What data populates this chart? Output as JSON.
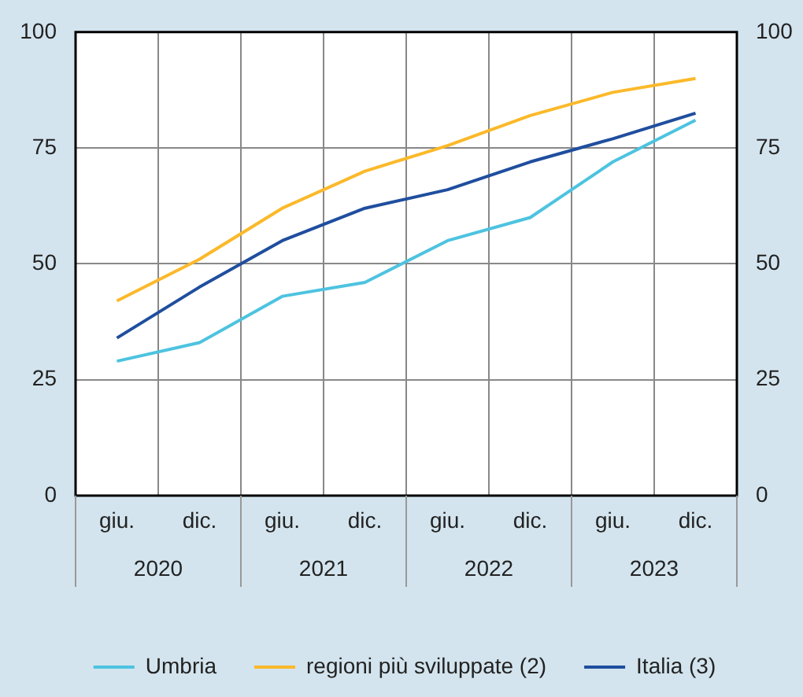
{
  "chart_data": {
    "type": "line",
    "categories": [
      "giu.",
      "dic.",
      "giu.",
      "dic.",
      "giu.",
      "dic.",
      "giu.",
      "dic."
    ],
    "annotations": [
      "2020",
      "2021",
      "2022",
      "2023"
    ],
    "series": [
      {
        "name": "Umbria",
        "color": "#4dc3e0",
        "values": [
          29,
          33,
          43,
          46,
          55,
          60,
          72,
          81
        ]
      },
      {
        "name": "regioni più sviluppate (2)",
        "color": "#fbb92a",
        "values": [
          42,
          51,
          62,
          70,
          75.5,
          82,
          87,
          90
        ]
      },
      {
        "name": "Italia (3)",
        "color": "#1f4e9e",
        "values": [
          34,
          45,
          55,
          62,
          66,
          72,
          77,
          82.5
        ]
      }
    ],
    "ylim": [
      0,
      100
    ],
    "yticks": [
      0,
      25,
      50,
      75,
      100
    ],
    "y2lim": [
      0,
      100
    ],
    "y2ticks": [
      0,
      25,
      50,
      75,
      100
    ],
    "grid": true,
    "legend": "bottom",
    "marker": "none",
    "line_style": "solid"
  }
}
